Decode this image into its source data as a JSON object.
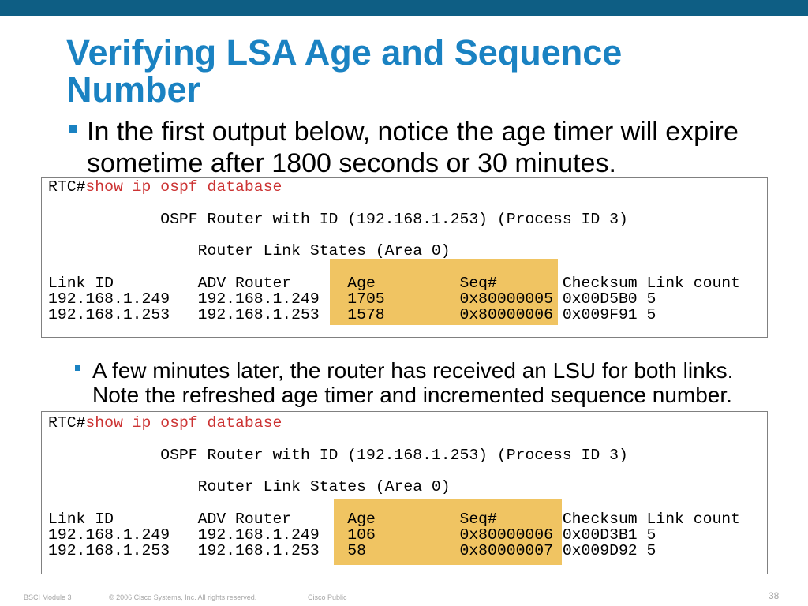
{
  "slide": {
    "title": "Verifying LSA Age and Sequence Number",
    "bullets": [
      "In the first output below, notice the age timer will expire sometime after 1800 seconds or 30 minutes.",
      "A few minutes later, the router has received an LSU for both links. Note the refreshed age timer and incremented sequence number."
    ],
    "page_number": "38"
  },
  "outputs": [
    {
      "prompt": "RTC#",
      "command": "show ip ospf database",
      "router_header": "OSPF Router with ID (192.168.1.253) (Process ID 3)",
      "section_header": "Router Link States (Area 0)",
      "columns": [
        "Link ID",
        "ADV Router",
        "Age",
        "Seq#",
        "Checksum",
        "Link count"
      ],
      "rows": [
        [
          "192.168.1.249",
          "192.168.1.249",
          "1705",
          "0x80000005",
          "0x00D5B0",
          "5"
        ],
        [
          "192.168.1.253",
          "192.168.1.253",
          "1578",
          "0x80000006",
          "0x009F91",
          "5"
        ]
      ]
    },
    {
      "prompt": "RTC#",
      "command": "show ip ospf database",
      "router_header": "OSPF Router with ID (192.168.1.253) (Process ID 3)",
      "section_header": "Router Link States (Area 0)",
      "columns": [
        "Link ID",
        "ADV Router",
        "Age",
        "Seq#",
        "Checksum",
        "Link count"
      ],
      "rows": [
        [
          "192.168.1.249",
          "192.168.1.249",
          "106",
          "0x80000006",
          "0x00D3B1",
          "5"
        ],
        [
          "192.168.1.253",
          "192.168.1.253",
          "58",
          "0x80000007",
          "0x009D92",
          "5"
        ]
      ]
    }
  ],
  "footer": {
    "module": "BSCI Module 3",
    "copyright": "© 2006 Cisco Systems, Inc. All rights reserved.",
    "classification": "Cisco Public"
  },
  "colors": {
    "top_bar": "#0e5e84",
    "title": "#1a82c2",
    "command": "#cc3333",
    "highlight": "#f0c462",
    "box_border": "#808080",
    "footer_text": "#a6a6a6"
  }
}
